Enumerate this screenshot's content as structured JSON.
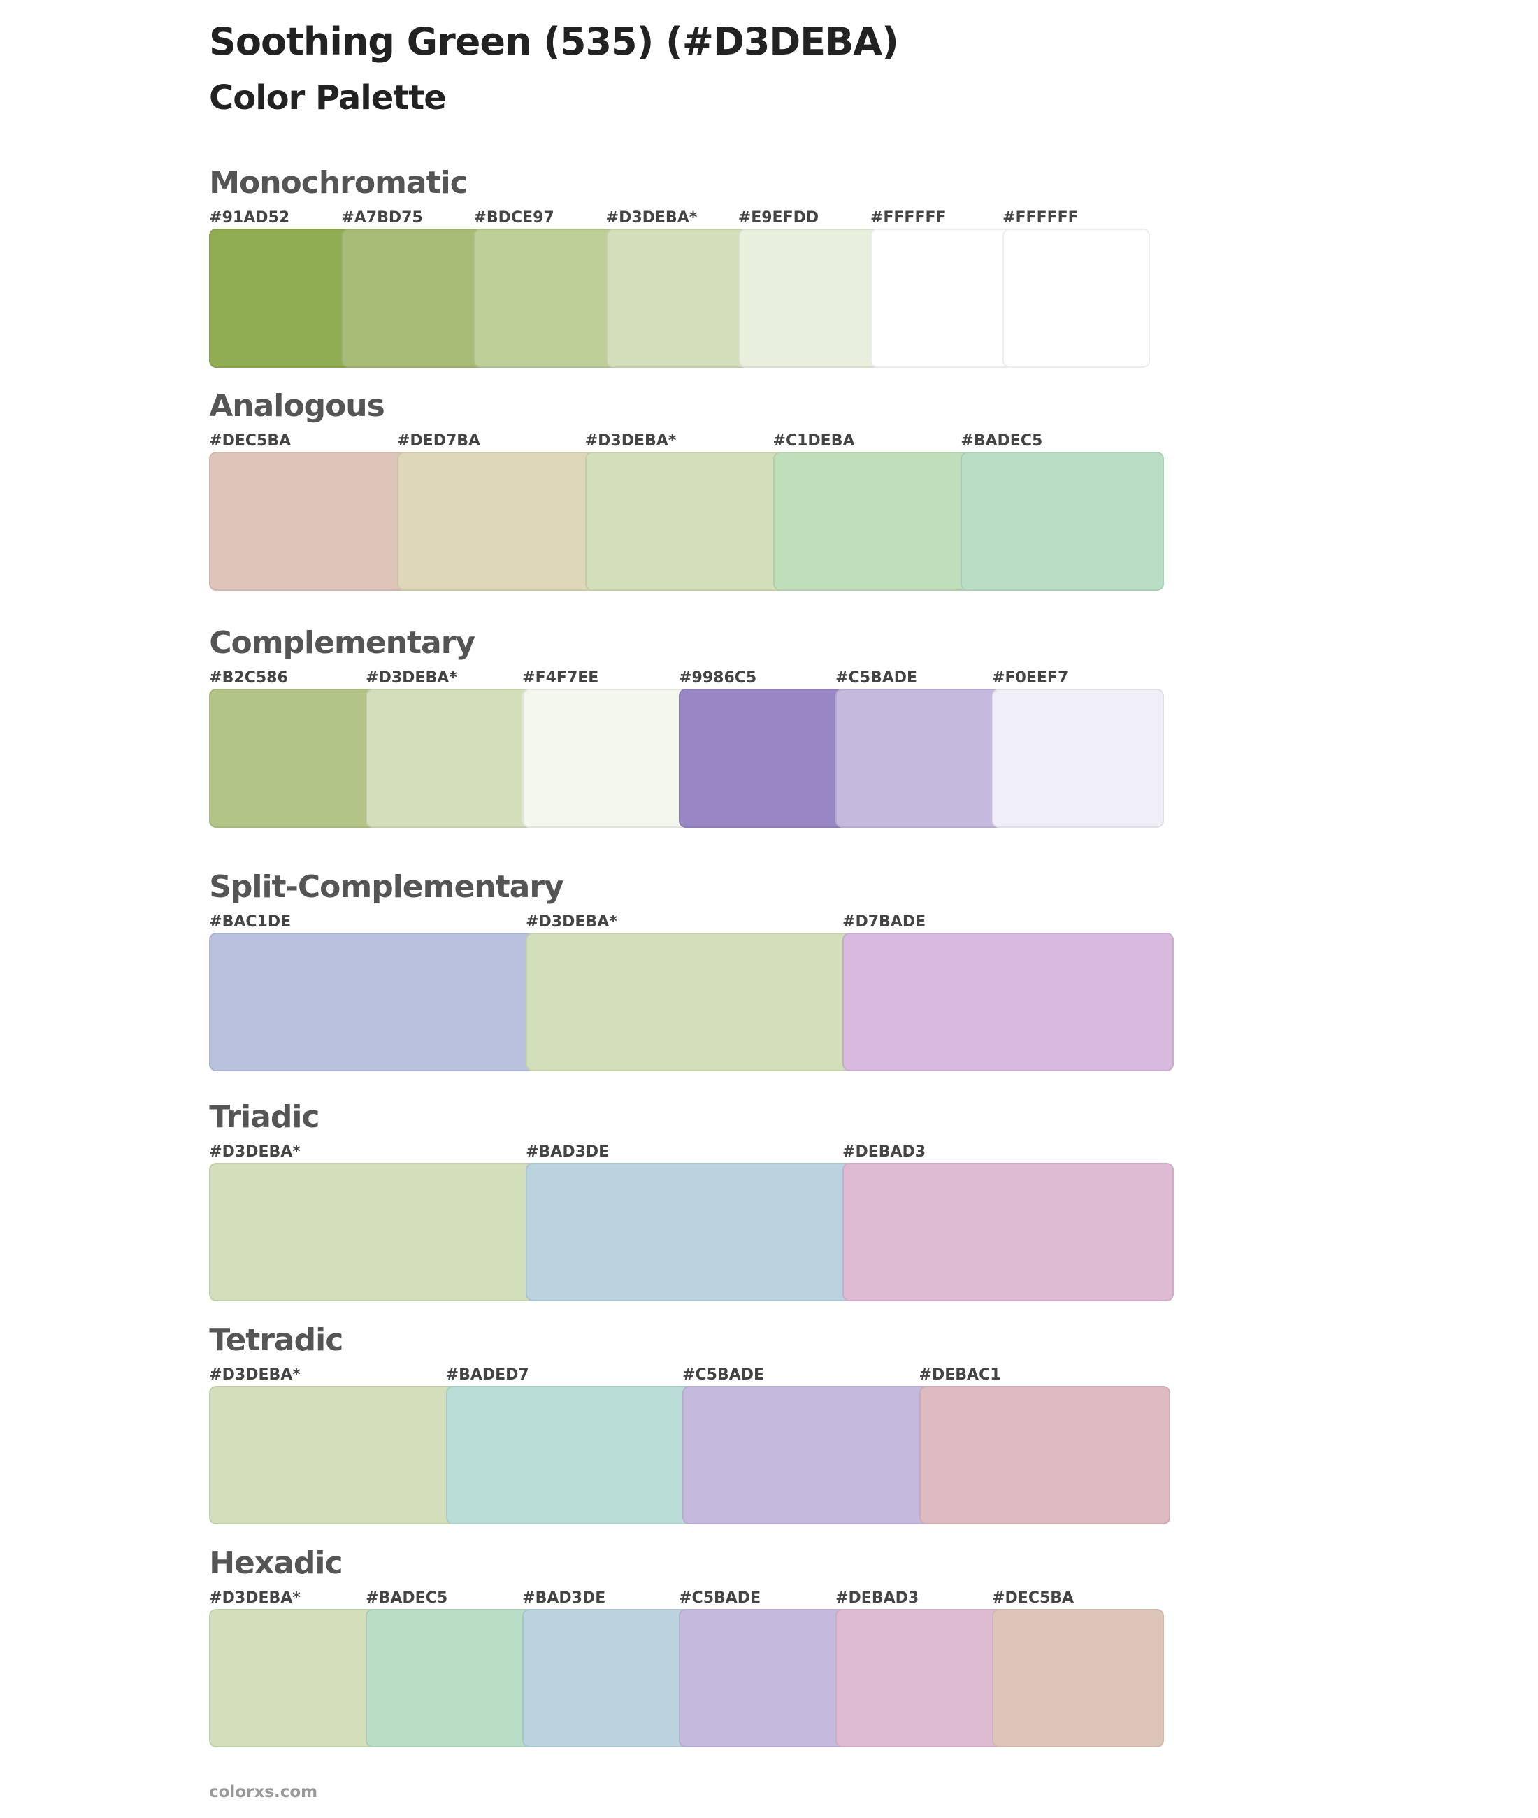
{
  "header": {
    "title": "Soothing Green (535) (#D3DEBA)",
    "subtitle": "Color Palette"
  },
  "sections": [
    {
      "name": "Monochromatic",
      "swatches": [
        {
          "label": "#91AD52"
        },
        {
          "label": "#A7BD75"
        },
        {
          "label": "#BDCE97"
        },
        {
          "label": "#D3DEBA*"
        },
        {
          "label": "#E9EFDD"
        },
        {
          "label": "#FFFFFF"
        },
        {
          "label": "#FFFFFF"
        }
      ]
    },
    {
      "name": "Analogous",
      "swatches": [
        {
          "label": "#DEC5BA"
        },
        {
          "label": "#DED7BA"
        },
        {
          "label": "#D3DEBA*"
        },
        {
          "label": "#C1DEBA"
        },
        {
          "label": "#BADEC5"
        }
      ]
    },
    {
      "name": "Complementary",
      "swatches": [
        {
          "label": "#B2C586"
        },
        {
          "label": "#D3DEBA*"
        },
        {
          "label": "#F4F7EE"
        },
        {
          "label": "#9986C5"
        },
        {
          "label": "#C5BADE"
        },
        {
          "label": "#F0EEF7"
        }
      ]
    },
    {
      "name": "Split-Complementary",
      "swatches": [
        {
          "label": "#BAC1DE"
        },
        {
          "label": "#D3DEBA*"
        },
        {
          "label": "#D7BADE"
        }
      ]
    },
    {
      "name": "Triadic",
      "swatches": [
        {
          "label": "#D3DEBA*"
        },
        {
          "label": "#BAD3DE"
        },
        {
          "label": "#DEBAD3"
        }
      ]
    },
    {
      "name": "Tetradic",
      "swatches": [
        {
          "label": "#D3DEBA*"
        },
        {
          "label": "#BADED7"
        },
        {
          "label": "#C5BADE"
        },
        {
          "label": "#DEBAC1"
        }
      ]
    },
    {
      "name": "Hexadic",
      "swatches": [
        {
          "label": "#D3DEBA*"
        },
        {
          "label": "#BADEC5"
        },
        {
          "label": "#BAD3DE"
        },
        {
          "label": "#C5BADE"
        },
        {
          "label": "#DEBAD3"
        },
        {
          "label": "#DEC5BA"
        }
      ]
    }
  ],
  "footer": "colorxs.com"
}
